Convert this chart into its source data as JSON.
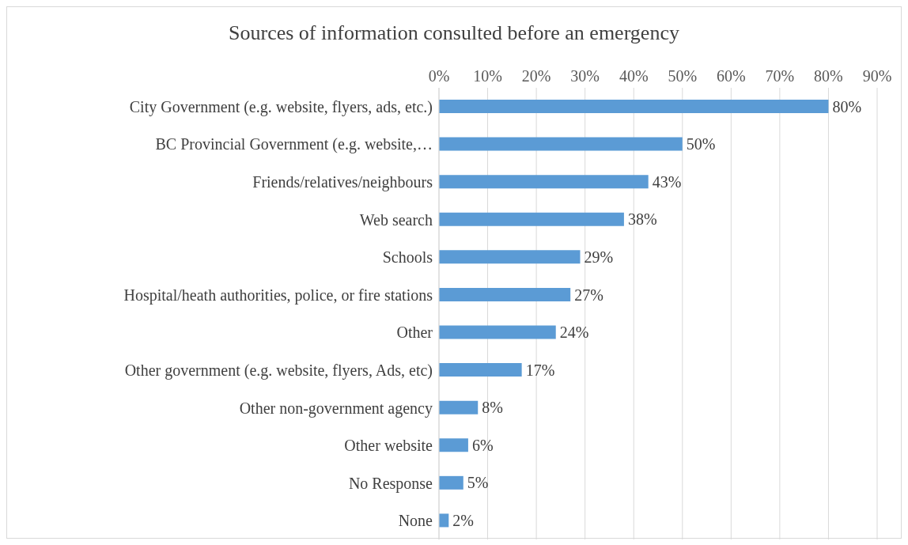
{
  "chart_data": {
    "type": "bar",
    "orientation": "horizontal",
    "title": "Sources of information consulted before an emergency",
    "categories": [
      "City Government (e.g. website, flyers, ads, etc.)",
      "BC Provincial Government (e.g. website,…",
      "Friends/relatives/neighbours",
      "Web search",
      "Schools",
      "Hospital/heath authorities, police, or fire stations",
      "Other",
      "Other government (e.g. website, flyers, Ads, etc)",
      "Other non-government agency",
      "Other website",
      "No Response",
      "None"
    ],
    "values": [
      80,
      50,
      43,
      38,
      29,
      27,
      24,
      17,
      8,
      6,
      5,
      2
    ],
    "value_labels": [
      "80%",
      "50%",
      "43%",
      "38%",
      "29%",
      "27%",
      "24%",
      "17%",
      "8%",
      "6%",
      "5%",
      "2%"
    ],
    "color": "#5b9bd5",
    "xlim": [
      0,
      90
    ],
    "xticks": [
      {
        "value": 0,
        "label": "0%"
      },
      {
        "value": 10,
        "label": "10%"
      },
      {
        "value": 20,
        "label": "20%"
      },
      {
        "value": 30,
        "label": "30%"
      },
      {
        "value": 40,
        "label": "40%"
      },
      {
        "value": 50,
        "label": "50%"
      },
      {
        "value": 60,
        "label": "60%"
      },
      {
        "value": 70,
        "label": "70%"
      },
      {
        "value": 80,
        "label": "80%"
      },
      {
        "value": 90,
        "label": "90%"
      }
    ],
    "grid": "x"
  }
}
